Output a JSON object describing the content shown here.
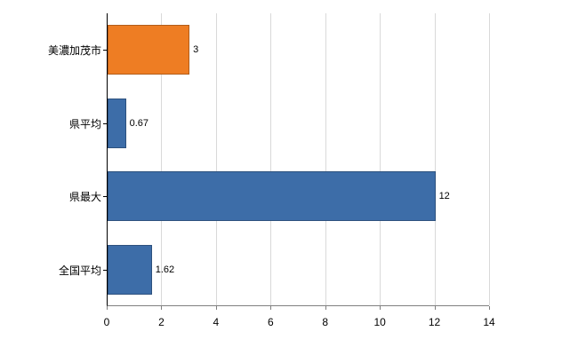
{
  "chart_data": {
    "type": "bar",
    "orientation": "horizontal",
    "title": "",
    "xlabel": "",
    "ylabel": "",
    "categories": [
      "美濃加茂市",
      "県平均",
      "県最大",
      "全国平均"
    ],
    "values": [
      3,
      0.67,
      12,
      1.62
    ],
    "value_labels": [
      "3",
      "0.67",
      "12",
      "1.62"
    ],
    "bar_colors": [
      "#ee7d23",
      "#3d6da8",
      "#3d6da8",
      "#3d6da8"
    ],
    "xlim": [
      0,
      14
    ],
    "x_ticks": [
      0,
      2,
      4,
      6,
      8,
      10,
      12,
      14
    ],
    "x_tick_labels": [
      "0",
      "2",
      "4",
      "6",
      "8",
      "10",
      "12",
      "14"
    ],
    "grid": true,
    "gridline_color": "#d9d9d9",
    "axis_color": "#000000",
    "legend": "none"
  }
}
